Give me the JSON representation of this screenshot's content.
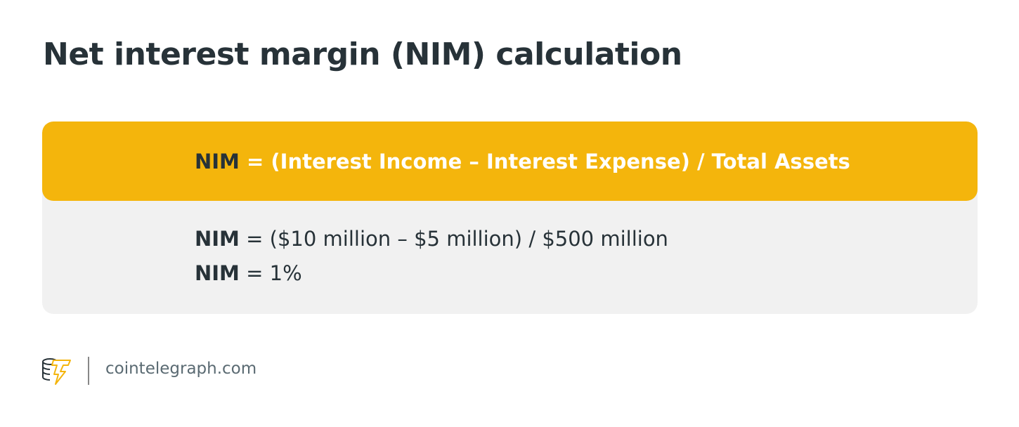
{
  "title": "Net interest margin (NIM) calculation",
  "formula": {
    "term": "NIM",
    "expression": " = (Interest Income – Interest Expense) / Total Assets"
  },
  "example": [
    {
      "term": "NIM",
      "expression": " = ($10 million – $5 million) / $500 million"
    },
    {
      "term": "NIM",
      "expression": " = 1%"
    }
  ],
  "footer": {
    "site": "cointelegraph.com",
    "logo_icon": "cointelegraph-logo-icon"
  },
  "colors": {
    "accent": "#f4b50c",
    "text": "#273238",
    "panel": "#f1f1f1"
  }
}
